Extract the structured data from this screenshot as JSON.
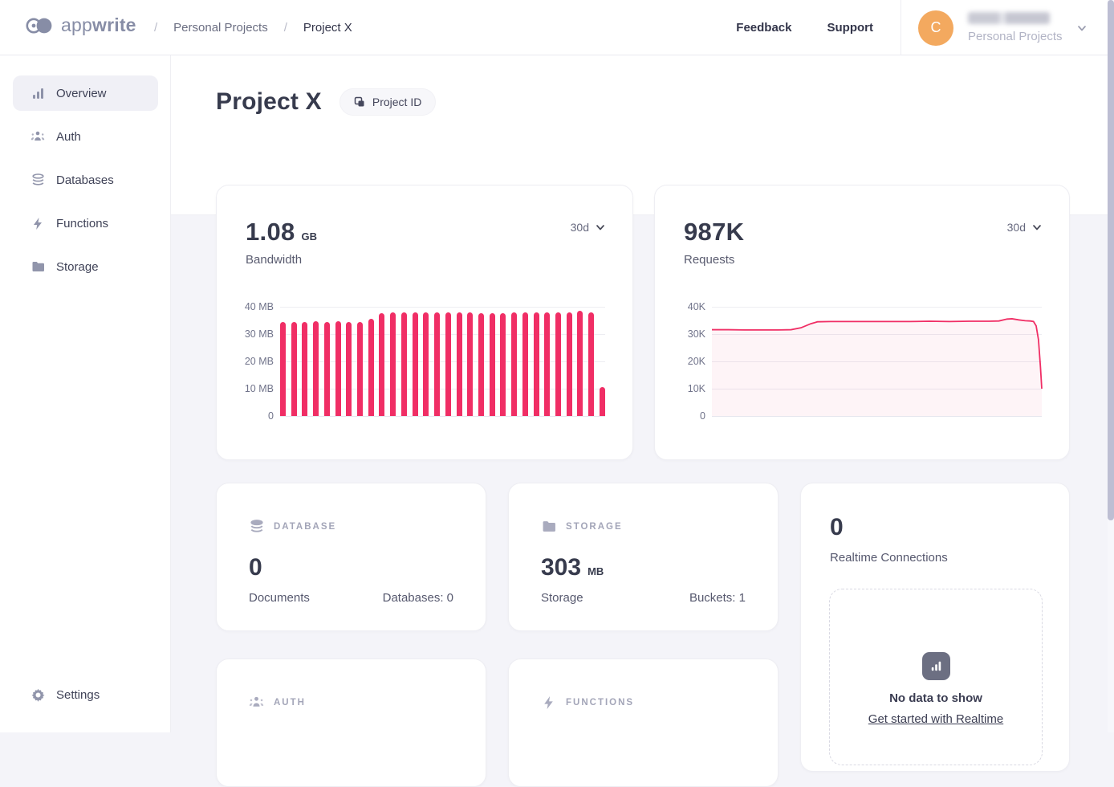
{
  "colors": {
    "accent": "#F02E65",
    "avatar": "#F3A95F",
    "icon_gray": "#9195AB",
    "cat_gray": "#A9ABBE"
  },
  "header": {
    "logo": {
      "light": "app",
      "bold": "write"
    },
    "breadcrumb": {
      "sep": "/",
      "parent": "Personal Projects",
      "current": "Project X"
    },
    "links": {
      "feedback": "Feedback",
      "support": "Support"
    },
    "account": {
      "initial": "C",
      "org": "Personal Projects"
    }
  },
  "sidebar": {
    "items": [
      {
        "label": "Overview",
        "icon": "bar-chart",
        "selected": true
      },
      {
        "label": "Auth",
        "icon": "users",
        "selected": false
      },
      {
        "label": "Databases",
        "icon": "database",
        "selected": false
      },
      {
        "label": "Functions",
        "icon": "lightning",
        "selected": false
      },
      {
        "label": "Storage",
        "icon": "folder",
        "selected": false
      }
    ],
    "settings": {
      "label": "Settings",
      "icon": "gear"
    }
  },
  "page": {
    "title": "Project X",
    "project_id_label": "Project ID"
  },
  "cards": {
    "bandwidth": {
      "value": "1.08",
      "unit": "GB",
      "label": "Bandwidth",
      "range": "30d"
    },
    "requests": {
      "value": "987K",
      "label": "Requests",
      "range": "30d"
    },
    "database": {
      "category": "DATABASE",
      "value": "0",
      "label": "Documents",
      "right": "Databases: 0"
    },
    "storage": {
      "category": "STORAGE",
      "value": "303",
      "unit": "MB",
      "label": "Storage",
      "right": "Buckets: 1"
    },
    "realtime": {
      "value": "0",
      "label": "Realtime Connections",
      "empty_title": "No data to show",
      "empty_link": "Get started with Realtime"
    },
    "auth": {
      "category": "AUTH"
    },
    "functions": {
      "category": "FUNCTIONS"
    }
  },
  "chart_data": [
    {
      "type": "bar",
      "title": "Bandwidth",
      "ylabel": "MB",
      "ylim": [
        0,
        40
      ],
      "ytick_labels": [
        "40 MB",
        "30 MB",
        "20 MB",
        "10 MB",
        "0"
      ],
      "grid": true,
      "values": [
        34.5,
        34.5,
        34.5,
        34.6,
        34.4,
        34.7,
        34.5,
        34.5,
        35.6,
        37.7,
        38.0,
        37.8,
        37.8,
        37.8,
        37.8,
        37.9,
        37.8,
        37.8,
        37.6,
        37.7,
        37.7,
        37.8,
        37.9,
        37.8,
        37.8,
        38.0,
        37.8,
        38.4,
        37.9,
        10.5
      ]
    },
    {
      "type": "line",
      "title": "Requests",
      "ylabel": "K requests",
      "ylim": [
        0,
        40
      ],
      "ytick_labels": [
        "40K",
        "30K",
        "20K",
        "10K",
        "0"
      ],
      "grid": true,
      "points": [
        [
          0,
          31.6
        ],
        [
          5,
          31.6
        ],
        [
          10,
          31.5
        ],
        [
          15,
          31.5
        ],
        [
          20,
          31.5
        ],
        [
          24,
          31.6
        ],
        [
          27,
          32.3
        ],
        [
          30,
          33.8
        ],
        [
          32,
          34.5
        ],
        [
          36,
          34.6
        ],
        [
          42,
          34.6
        ],
        [
          48,
          34.6
        ],
        [
          54,
          34.6
        ],
        [
          60,
          34.6
        ],
        [
          66,
          34.7
        ],
        [
          72,
          34.6
        ],
        [
          78,
          34.7
        ],
        [
          84,
          34.7
        ],
        [
          87,
          34.8
        ],
        [
          89.5,
          35.5
        ],
        [
          91,
          35.6
        ],
        [
          93,
          35.2
        ],
        [
          95,
          34.9
        ],
        [
          96.5,
          34.8
        ],
        [
          97.5,
          34.6
        ],
        [
          98.3,
          33.0
        ],
        [
          99.0,
          28.0
        ],
        [
          99.6,
          18.0
        ],
        [
          100,
          10.0
        ]
      ]
    }
  ]
}
